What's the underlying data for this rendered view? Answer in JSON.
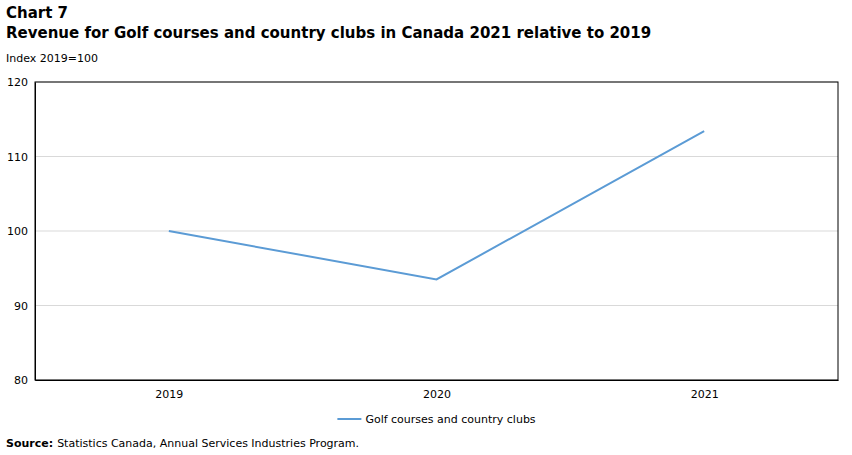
{
  "chart_data": {
    "type": "line",
    "title": "Chart 7",
    "subtitle": "Revenue for Golf courses and country clubs in Canada 2021 relative to 2019",
    "y_label": "Index 2019=100",
    "source_label": "Source:",
    "source": "Statistics Canada, Annual Services Industries Program.",
    "categories": [
      "2019",
      "2020",
      "2021"
    ],
    "series": [
      {
        "name": "Golf courses and country clubs",
        "color": "#5b9bd5",
        "values": [
          100,
          93.5,
          113.4
        ]
      }
    ],
    "ylim": [
      80,
      120
    ],
    "yticks": [
      80,
      90,
      100,
      110,
      120
    ],
    "grid": true,
    "legend": "bottom"
  }
}
